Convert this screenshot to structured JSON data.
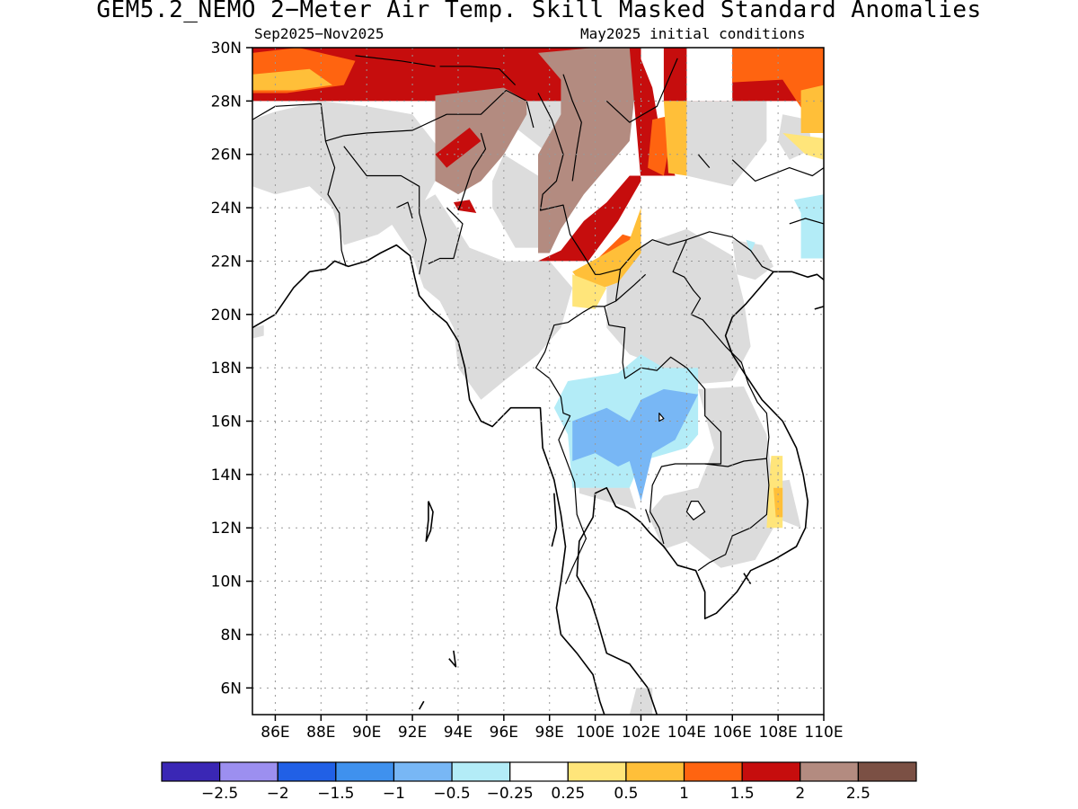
{
  "title": "GEM5.2_NEMO 2−Meter Air Temp. Skill Masked Standard Anomalies",
  "period": "Sep2025−Nov2025",
  "initial_conditions": "May2025 initial conditions",
  "map": {
    "lat_range": [
      5,
      30
    ],
    "lon_range": [
      85,
      110
    ],
    "lat_ticks": [
      "6N",
      "8N",
      "10N",
      "12N",
      "14N",
      "16N",
      "18N",
      "20N",
      "22N",
      "24N",
      "26N",
      "28N",
      "30N"
    ],
    "lon_ticks": [
      "86E",
      "88E",
      "90E",
      "92E",
      "94E",
      "96E",
      "98E",
      "100E",
      "102E",
      "104E",
      "106E",
      "108E",
      "110E"
    ],
    "grid": true,
    "coastline_color": "#000000"
  },
  "colorbar": {
    "colors": [
      "#3a27b5",
      "#9c8ff0",
      "#2160e6",
      "#3f91ee",
      "#78b7f5",
      "#b3ecf7",
      "#ffffff",
      "#ffe57a",
      "#ffbf39",
      "#ff6410",
      "#c60d0d",
      "#b38b80",
      "#7b5044"
    ],
    "labels": [
      "−2.5",
      "−2",
      "−1.5",
      "−1",
      "−0.5",
      "−0.25",
      "0.25",
      "0.5",
      "1",
      "1.5",
      "2",
      "2.5"
    ]
  }
}
